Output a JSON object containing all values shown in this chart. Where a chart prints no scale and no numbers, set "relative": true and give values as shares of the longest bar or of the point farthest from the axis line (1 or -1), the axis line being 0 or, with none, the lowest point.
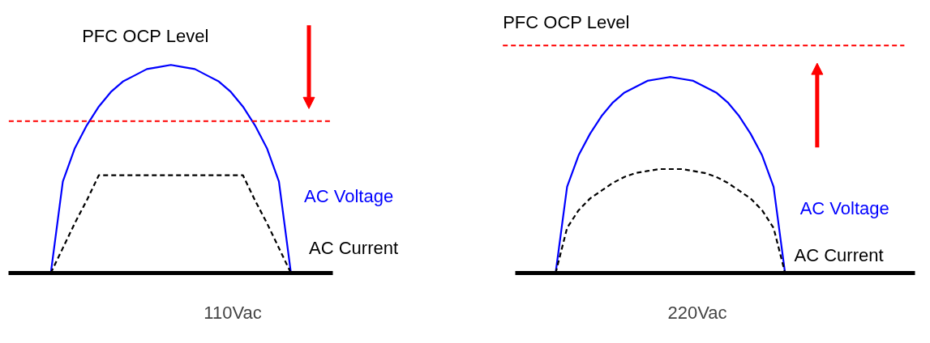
{
  "chart_data": [
    {
      "type": "line",
      "relative": true,
      "xlabel": "110Vac",
      "categories": [
        null,
        null,
        null,
        null,
        null,
        null,
        null,
        null,
        null,
        null,
        null,
        null,
        null,
        null,
        null,
        null,
        null,
        null,
        null,
        null,
        null
      ],
      "series": [
        {
          "name": "AC Voltage",
          "color": "#0000ff",
          "line_style": "solid",
          "values": [
            0,
            0.44,
            0.6,
            0.71,
            0.8,
            0.87,
            0.92,
            0.95,
            0.98,
            0.99,
            1,
            0.99,
            0.98,
            0.95,
            0.92,
            0.87,
            0.8,
            0.71,
            0.6,
            0.44,
            0
          ]
        },
        {
          "name": "AC Current",
          "color": "#000000",
          "line_style": "dashed",
          "values": [
            0,
            0.12,
            0.24,
            0.35,
            0.47,
            0.47,
            0.47,
            0.47,
            0.47,
            0.47,
            0.47,
            0.47,
            0.47,
            0.47,
            0.47,
            0.47,
            0.47,
            0.35,
            0.24,
            0.12,
            0
          ]
        }
      ],
      "annotations": [
        "PFC  OCP Level"
      ],
      "ref_lines": [
        {
          "axis": "y",
          "value": 0.73,
          "color": "#ff0000",
          "line_style": "dashed"
        }
      ]
    },
    {
      "type": "line",
      "relative": true,
      "xlabel": "220Vac",
      "categories": [
        null,
        null,
        null,
        null,
        null,
        null,
        null,
        null,
        null,
        null,
        null,
        null,
        null,
        null,
        null,
        null,
        null,
        null,
        null,
        null,
        null
      ],
      "series": [
        {
          "name": "AC Voltage",
          "color": "#0000ff",
          "line_style": "solid",
          "values": [
            0,
            0.44,
            0.6,
            0.71,
            0.8,
            0.87,
            0.92,
            0.95,
            0.98,
            0.99,
            1,
            0.99,
            0.98,
            0.95,
            0.92,
            0.87,
            0.8,
            0.71,
            0.6,
            0.44,
            0
          ]
        },
        {
          "name": "AC Current",
          "color": "#000000",
          "line_style": "dashed",
          "values": [
            0,
            0.23,
            0.32,
            0.38,
            0.42,
            0.46,
            0.49,
            0.51,
            0.52,
            0.53,
            0.53,
            0.53,
            0.52,
            0.51,
            0.49,
            0.46,
            0.42,
            0.38,
            0.32,
            0.23,
            0
          ]
        }
      ],
      "annotations": [
        "PFC  OCP Level"
      ],
      "ref_lines": [
        {
          "axis": "y",
          "value": 1.16,
          "color": "#ff0000",
          "line_style": "dashed"
        }
      ]
    }
  ]
}
